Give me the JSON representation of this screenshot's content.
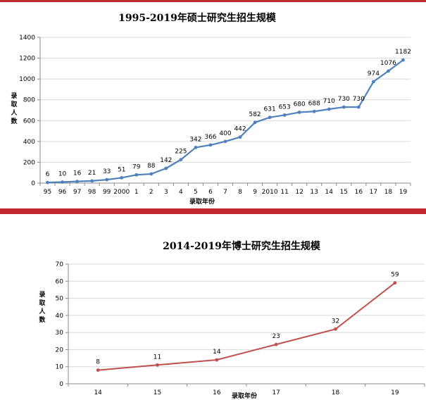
{
  "chart_data": [
    {
      "type": "line",
      "title": "1995-2019年硕士研究生招生规模",
      "xlabel": "录取年份",
      "ylabel": "录取人数",
      "categories": [
        "95",
        "96",
        "97",
        "98",
        "99",
        "2000",
        "1",
        "2",
        "3",
        "4",
        "5",
        "6",
        "7",
        "8",
        "9",
        "2010",
        "11",
        "12",
        "13",
        "14",
        "15",
        "16",
        "17",
        "18",
        "19"
      ],
      "series": [
        {
          "values": [
            6,
            10,
            16,
            21,
            33,
            51,
            79,
            88,
            142,
            225,
            342,
            366,
            400,
            442,
            582,
            631,
            653,
            680,
            688,
            710,
            730,
            730,
            974,
            1076,
            1182
          ]
        }
      ],
      "ylim": [
        0,
        1400
      ],
      "yticks": [
        0,
        200,
        400,
        600,
        800,
        1000,
        1200,
        1400
      ],
      "grid": true,
      "color": "#4f81bd"
    },
    {
      "type": "line",
      "title": "2014-2019年博士研究生招生规模",
      "xlabel": "录取年份",
      "ylabel": "录取人数",
      "categories": [
        "14",
        "15",
        "16",
        "17",
        "18",
        "19"
      ],
      "series": [
        {
          "values": [
            8,
            11,
            14,
            23,
            32,
            59
          ]
        }
      ],
      "ylim": [
        0,
        70
      ],
      "yticks": [
        0,
        10,
        20,
        30,
        40,
        50,
        60,
        70
      ],
      "grid": true,
      "color": "#c0504d"
    }
  ]
}
